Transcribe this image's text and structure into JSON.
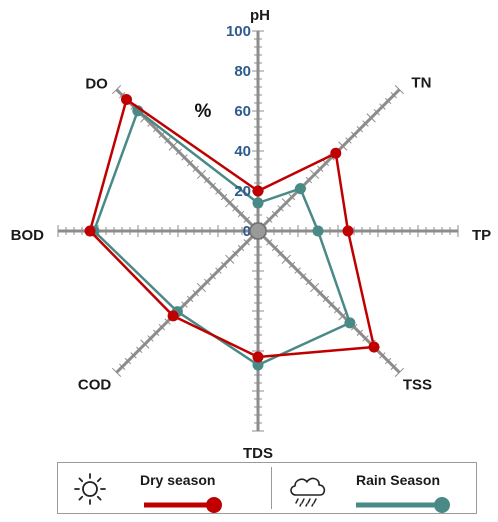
{
  "chart_data": {
    "type": "radar",
    "axes": [
      "pH",
      "TN",
      "TP",
      "TSS",
      "TDS",
      "COD",
      "BOD",
      "DO"
    ],
    "scale_labels": [
      "0",
      "20",
      "40",
      "60",
      "80",
      "100"
    ],
    "unit_label": "%",
    "range": [
      0,
      100
    ],
    "series": [
      {
        "name": "Dry season",
        "color": "#c00000",
        "values": [
          20,
          55,
          45,
          82,
          63,
          60,
          84,
          93
        ]
      },
      {
        "name": "Rain Season",
        "color": "#4a8a86",
        "values": [
          14,
          30,
          30,
          65,
          67,
          57,
          82,
          85
        ]
      }
    ],
    "legend_placement": "bottom",
    "center_marker_color": "#9a9a9a"
  },
  "legend": {
    "dry_label": "Dry season",
    "rain_label": "Rain Season",
    "dry_icon": "sun-icon",
    "rain_icon": "rain-cloud-icon"
  }
}
